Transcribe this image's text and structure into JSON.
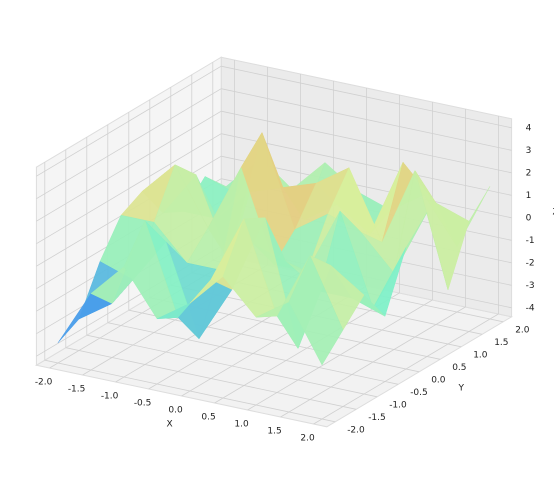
{
  "chart_data": {
    "type": "surface",
    "x_label": "X",
    "y_label": "Y",
    "z_label": "Z",
    "x": [
      -2,
      -1.5,
      -1,
      -0.5,
      0,
      0.5,
      1,
      1.5,
      2
    ],
    "y": [
      -2,
      -1.5,
      -1,
      -0.5,
      0,
      0.5,
      1,
      1.5,
      2
    ],
    "z": [
      [
        -3.5,
        -1,
        0.5,
        -1.5,
        -0.5,
        1,
        -0.5,
        0.5,
        -2
      ],
      [
        -3,
        -2,
        2,
        -2,
        0,
        3,
        -1,
        2,
        -1
      ],
      [
        -1,
        -1.5,
        0.5,
        -3.5,
        -1,
        2.5,
        -3,
        1,
        0
      ],
      [
        0.5,
        0.5,
        -1,
        -1,
        0.5,
        0,
        -1,
        -1,
        -1.5
      ],
      [
        1,
        2.5,
        0,
        3,
        -1,
        -1,
        2,
        -2,
        1
      ],
      [
        -0.5,
        1.5,
        -2,
        4,
        0,
        1,
        0.5,
        -1,
        2
      ],
      [
        -1,
        -1,
        0.5,
        1,
        1.5,
        2.5,
        -0.5,
        3,
        -2
      ],
      [
        0,
        -0.5,
        1,
        -1,
        0,
        -1,
        2.5,
        1,
        0.5
      ],
      [
        -1,
        0.5,
        -0.5,
        1,
        0,
        -0.5,
        0.5,
        -1.5,
        1.5
      ]
    ],
    "colormap": [
      "#3b1fd0",
      "#3f8ef0",
      "#7ff0c8",
      "#d8ee9c",
      "#f6a35c",
      "#d42a1a"
    ],
    "xlim": [
      -2.2,
      2.2
    ],
    "ylim": [
      -2.2,
      2.2
    ],
    "zlim": [
      -4.4,
      4.4
    ],
    "xticks": [
      {
        "value": -2,
        "label": "-2.0"
      },
      {
        "value": -1.5,
        "label": "-1.5"
      },
      {
        "value": -1,
        "label": "-1.0"
      },
      {
        "value": -0.5,
        "label": "-0.5"
      },
      {
        "value": 0,
        "label": "0.0"
      },
      {
        "value": 0.5,
        "label": "0.5"
      },
      {
        "value": 1,
        "label": "1.0"
      },
      {
        "value": 1.5,
        "label": "1.5"
      },
      {
        "value": 2,
        "label": "2.0"
      }
    ],
    "yticks": [
      {
        "value": -2,
        "label": "-2.0"
      },
      {
        "value": -1.5,
        "label": "-1.5"
      },
      {
        "value": -1,
        "label": "-1.0"
      },
      {
        "value": -0.5,
        "label": "-0.5"
      },
      {
        "value": 0,
        "label": "0.0"
      },
      {
        "value": 0.5,
        "label": "0.5"
      },
      {
        "value": 1,
        "label": "1.0"
      },
      {
        "value": 1.5,
        "label": "1.5"
      },
      {
        "value": 2,
        "label": "2.0"
      }
    ],
    "zticks": [
      -4,
      -3,
      -2,
      -1,
      0,
      1,
      2,
      3,
      4
    ],
    "grid": true
  }
}
